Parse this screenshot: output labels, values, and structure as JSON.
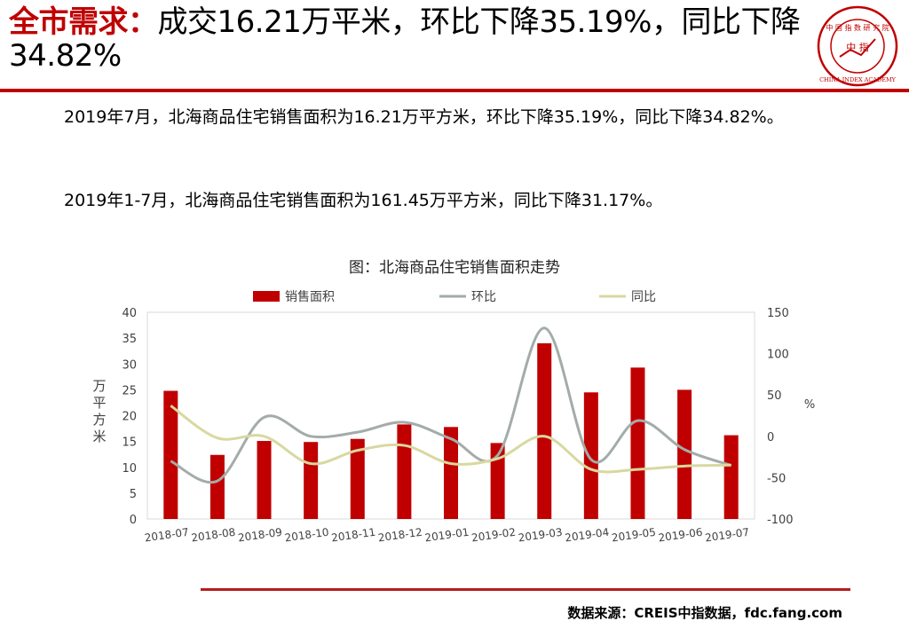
{
  "header": {
    "title_accent": "全市需求：",
    "title_rest": "成交16.21万平米，环比下降35.19%，同比下降34.82%",
    "logo_text": "CHINA INDEX ACADEMY",
    "logo_center": "中 指",
    "accent_color": "#c00000"
  },
  "body": {
    "paragraph1": "2019年7月，北海商品住宅销售面积为16.21万平方米，环比下降35.19%，同比下降34.82%。",
    "paragraph2": "2019年1-7月，北海商品住宅销售面积为161.45万平方米，同比下降31.17%。"
  },
  "chart_title": "图：北海商品住宅销售面积走势",
  "footer": {
    "source": "数据来源：CREIS中指数据，fdc.fang.com"
  },
  "chart_data": {
    "type": "bar",
    "categories": [
      "2018-07",
      "2018-08",
      "2018-09",
      "2018-10",
      "2018-11",
      "2018-12",
      "2019-01",
      "2019-02",
      "2019-03",
      "2019-04",
      "2019-05",
      "2019-06",
      "2019-07"
    ],
    "series": [
      {
        "name": "销售面积",
        "type": "bar",
        "axis": "left",
        "color": "#c00000",
        "values": [
          24.8,
          12.4,
          15.1,
          14.9,
          15.5,
          18.3,
          17.8,
          14.7,
          34.0,
          24.5,
          29.3,
          25.0,
          16.21
        ]
      },
      {
        "name": "环比",
        "type": "line",
        "axis": "right",
        "color": "#a3aca8",
        "values": [
          -30,
          -54,
          23,
          0,
          5,
          17,
          -3,
          -23,
          131,
          -28,
          19,
          -16,
          -35.19
        ]
      },
      {
        "name": "同比",
        "type": "line",
        "axis": "right",
        "color": "#d8d8a0",
        "values": [
          37,
          -2,
          0,
          -33,
          -17,
          -11,
          -33,
          -27,
          0,
          -40,
          -40,
          -36,
          -34.82
        ]
      }
    ],
    "ylabel": "万平方米",
    "y2label": "%",
    "ylim": [
      0,
      40
    ],
    "y2lim": [
      -100,
      150
    ],
    "yticks": [
      0,
      5,
      10,
      15,
      20,
      25,
      30,
      35,
      40
    ],
    "y2ticks": [
      -100,
      -50,
      0,
      50,
      100,
      150
    ],
    "legend_position": "top",
    "grid": false
  }
}
